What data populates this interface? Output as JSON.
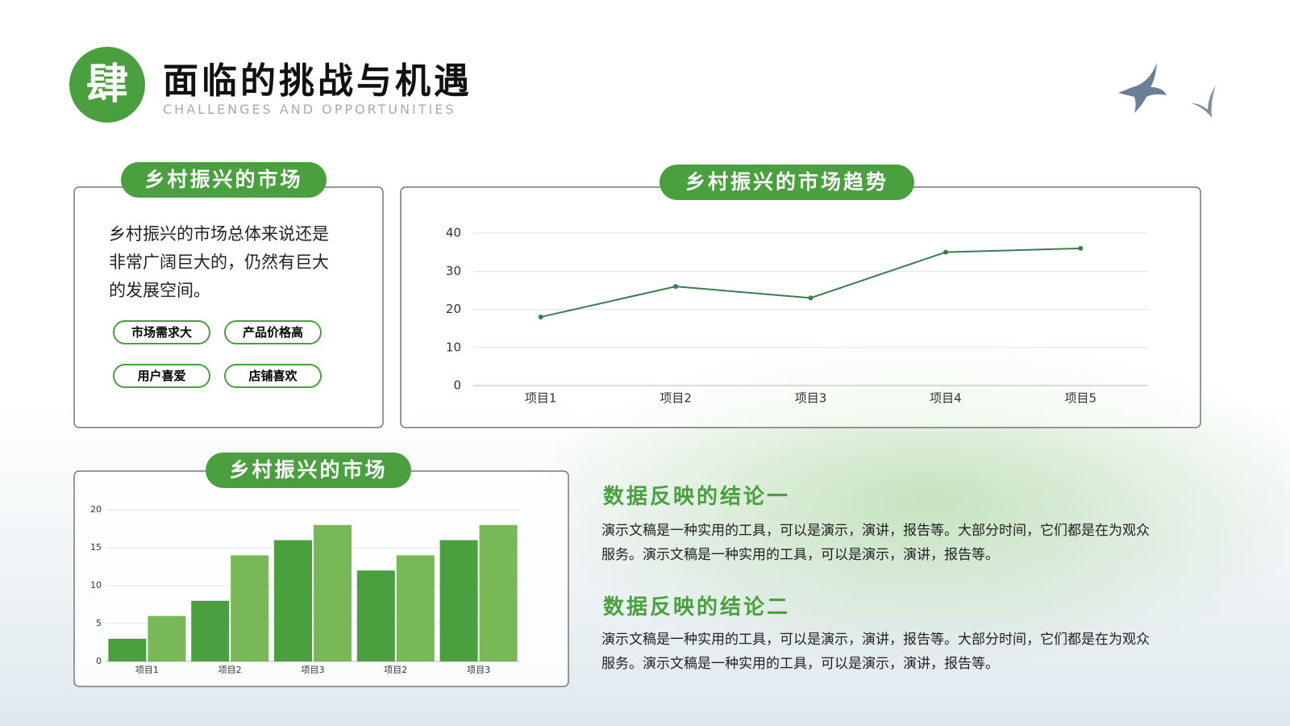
{
  "header": {
    "badge": "肆",
    "title": "面临的挑战与机遇",
    "subtitle": "CHALLENGES AND OPPORTUNITIES"
  },
  "market": {
    "title": "乡村振兴的市场",
    "text": [
      "乡村振兴的市场总体来说还是",
      "非常广阔巨大的，仍然有巨大",
      "的发展空间。"
    ],
    "tags": [
      "市场需求大",
      "产品价格高",
      "用户喜爱",
      "店铺喜欢"
    ]
  },
  "chart_data": [
    {
      "type": "line",
      "title": "乡村振兴的市场趋势",
      "categories": [
        "项目1",
        "项目2",
        "项目3",
        "项目4",
        "项目5"
      ],
      "values": [
        18,
        26,
        23,
        35,
        36
      ],
      "color": "#3a7d4e",
      "ylim": [
        0,
        40
      ],
      "yticks": [
        0,
        10,
        20,
        30,
        40
      ],
      "grid": true
    },
    {
      "type": "bar",
      "title": "乡村振兴的市场",
      "categories": [
        "项目1",
        "项目2",
        "项目3",
        "项目2",
        "项目3"
      ],
      "series": [
        {
          "color": "#4aa03f",
          "values": [
            3,
            8,
            16,
            12,
            16
          ]
        },
        {
          "color": "#78b856",
          "values": [
            6,
            14,
            18,
            14,
            18
          ]
        }
      ],
      "ylim": [
        0,
        20
      ],
      "yticks": [
        0,
        5,
        10,
        15,
        20
      ],
      "grid": true
    }
  ],
  "conclusions": [
    {
      "title": "数据反映的结论一",
      "text": [
        "演示文稿是一种实用的工具，可以是演示，演讲，报告等。大部分时间，它们都是在为观众",
        "服务。演示文稿是一种实用的工具，可以是演示，演讲，报告等。"
      ]
    },
    {
      "title": "数据反映的结论二",
      "text": [
        "演示文稿是一种实用的工具，可以是演示，演讲，报告等。大部分时间，它们都是在为观众",
        "服务。演示文稿是一种实用的工具，可以是演示，演讲，报告等。"
      ]
    }
  ]
}
